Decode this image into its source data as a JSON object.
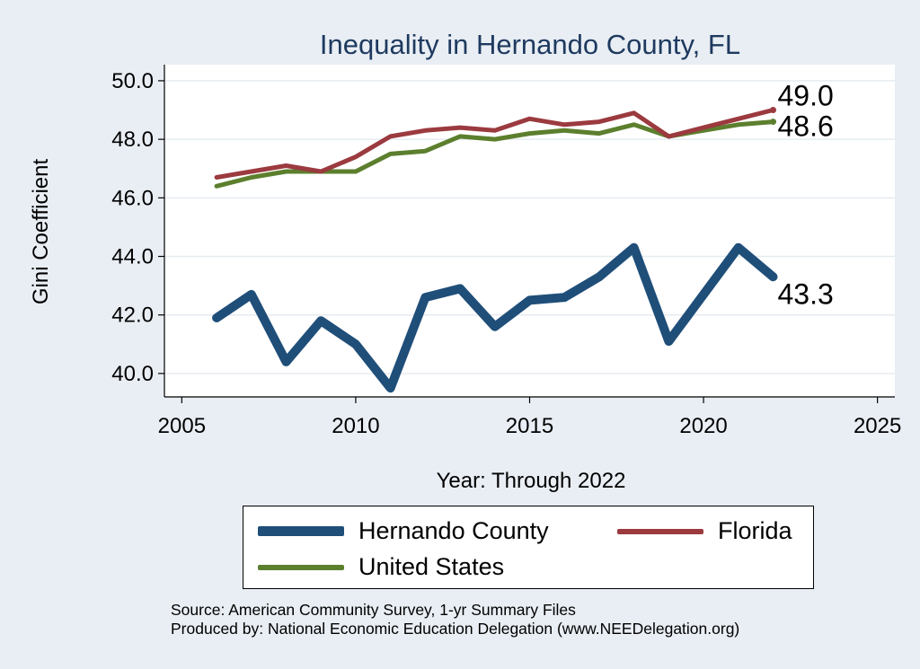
{
  "chart_data": {
    "type": "line",
    "title": "Inequality in Hernando County, FL",
    "xlabel": "Year: Through 2022",
    "ylabel": "Gini Coefficient",
    "xlim": [
      2004.5,
      2025.5
    ],
    "ylim": [
      39.2,
      50.55
    ],
    "xticks": [
      2005,
      2010,
      2015,
      2020,
      2025
    ],
    "yticks": [
      40.0,
      42.0,
      44.0,
      46.0,
      48.0,
      50.0
    ],
    "ytick_labels": [
      "40.0",
      "42.0",
      "44.0",
      "46.0",
      "48.0",
      "50.0"
    ],
    "grid": true,
    "legend_position": "bottom",
    "x": [
      2006,
      2007,
      2008,
      2009,
      2010,
      2011,
      2012,
      2013,
      2014,
      2015,
      2016,
      2017,
      2018,
      2019,
      2020,
      2021,
      2022
    ],
    "series": [
      {
        "name": "Hernando County",
        "color": "#1f4e79",
        "values": [
          41.9,
          42.7,
          40.4,
          41.8,
          41.0,
          39.5,
          42.6,
          42.9,
          41.6,
          42.5,
          42.6,
          43.3,
          44.3,
          41.1,
          42.7,
          44.3,
          43.3
        ],
        "end_label": "43.3"
      },
      {
        "name": "Florida",
        "color": "#9b3a3f",
        "values": [
          46.7,
          46.9,
          47.1,
          46.9,
          47.4,
          48.1,
          48.3,
          48.4,
          48.3,
          48.7,
          48.5,
          48.6,
          48.9,
          48.1,
          48.4,
          48.7,
          49.0
        ],
        "end_label": "49.0"
      },
      {
        "name": "United States",
        "color": "#5c7f2e",
        "values": [
          46.4,
          46.7,
          46.9,
          46.9,
          46.9,
          47.5,
          47.6,
          48.1,
          48.0,
          48.2,
          48.3,
          48.2,
          48.5,
          48.1,
          48.3,
          48.5,
          48.6
        ],
        "end_label": "48.6"
      }
    ]
  },
  "legend": {
    "items": [
      "Hernando County",
      "Florida",
      "United States"
    ]
  },
  "source": {
    "line1": "Source: American Community Survey, 1-yr Summary Files",
    "line2": "Produced by: National Economic Education Delegation (www.NEEDelegation.org)"
  }
}
